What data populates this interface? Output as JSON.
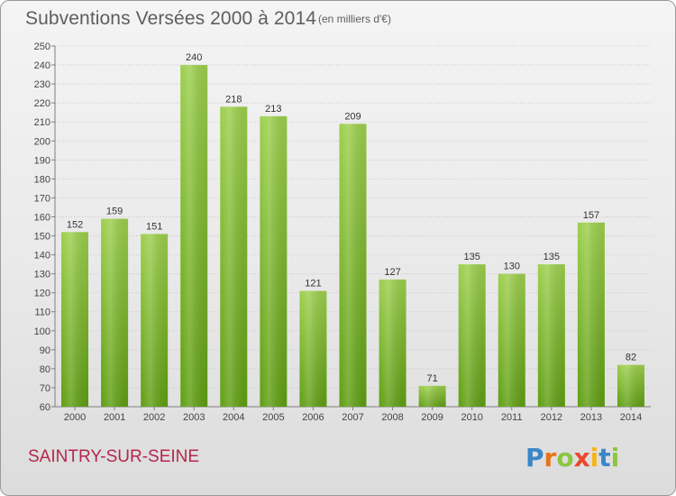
{
  "header": {
    "title": "Subventions Versées 2000 à 2014",
    "unit": "(en milliers d'€)"
  },
  "footer": {
    "place": "SAINTRY-SUR-SEINE",
    "logo_text": "Proxiti"
  },
  "colors": {
    "bar_top": "#9ccf4c",
    "bar_bottom": "#5f9e12",
    "place_text": "#b6254f",
    "logo_colors": [
      "#3a86c8",
      "#e8731d",
      "#8cc63f",
      "#e84a2b",
      "#f2b51d",
      "#3a86c8",
      "#8cc63f"
    ]
  },
  "chart_data": {
    "type": "bar",
    "categories": [
      "2000",
      "2001",
      "2002",
      "2003",
      "2004",
      "2005",
      "2006",
      "2007",
      "2008",
      "2009",
      "2010",
      "2011",
      "2012",
      "2013",
      "2014"
    ],
    "values": [
      152,
      159,
      151,
      240,
      218,
      213,
      121,
      209,
      127,
      71,
      135,
      130,
      135,
      157,
      82
    ],
    "title": "Subventions Versées 2000 à 2014",
    "subtitle": "(en milliers d'€)",
    "xlabel": "",
    "ylabel": "",
    "ylim": [
      60,
      250
    ],
    "yticks": [
      60,
      70,
      80,
      90,
      100,
      110,
      120,
      130,
      140,
      150,
      160,
      170,
      180,
      190,
      200,
      210,
      220,
      230,
      240,
      250
    ],
    "grid": true,
    "data_labels": true
  }
}
